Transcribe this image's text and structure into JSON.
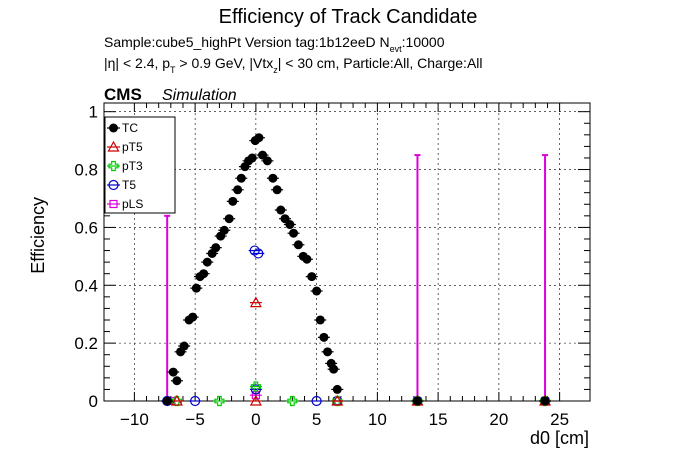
{
  "chart_data": {
    "type": "scatter",
    "title": "Efficiency of Track Candidate",
    "subtitle_line1": "Sample:cube5_highPt   Version tag:1b12eeD  N",
    "subtitle_line1_sub": "evt",
    "subtitle_line1_end": ":10000",
    "subtitle_line2": "|η| < 2.4, p",
    "subtitle_line2_sub1": "T",
    "subtitle_line2_mid": " > 0.9 GeV, |Vtx",
    "subtitle_line2_sub2": "z",
    "subtitle_line2_end": "| < 30 cm, Particle:All, Charge:All",
    "cms_label": "CMS",
    "sim_label": "Simulation",
    "xlabel": "d0 [cm]",
    "ylabel": "Efficiency",
    "xlim": [
      -12.5,
      27.5
    ],
    "ylim": [
      0,
      1.03
    ],
    "x_ticks": [
      -10,
      -5,
      0,
      5,
      10,
      15,
      20,
      25
    ],
    "x_tick_labels": [
      "−10",
      "−5",
      "0",
      "5",
      "10",
      "15",
      "20",
      "25"
    ],
    "y_ticks": [
      0,
      0.2,
      0.4,
      0.6,
      0.8,
      1
    ],
    "y_tick_labels": [
      "0",
      "0.2",
      "0.4",
      "0.6",
      "0.8",
      "1"
    ],
    "grid": true,
    "legend_position": "top-left",
    "series": [
      {
        "name": "TC",
        "color": "#000000",
        "marker": "filled-circle",
        "points": [
          [
            -7.3,
            0.0
          ],
          [
            -6.8,
            0.1
          ],
          [
            -6.5,
            0.07
          ],
          [
            -6.2,
            0.17
          ],
          [
            -5.9,
            0.19
          ],
          [
            -5.5,
            0.28
          ],
          [
            -5.2,
            0.29
          ],
          [
            -4.9,
            0.39
          ],
          [
            -4.6,
            0.43
          ],
          [
            -4.3,
            0.44
          ],
          [
            -4.0,
            0.48
          ],
          [
            -3.6,
            0.51
          ],
          [
            -3.3,
            0.53
          ],
          [
            -2.9,
            0.57
          ],
          [
            -2.6,
            0.59
          ],
          [
            -2.2,
            0.63
          ],
          [
            -1.9,
            0.69
          ],
          [
            -1.5,
            0.73
          ],
          [
            -1.2,
            0.77
          ],
          [
            -0.9,
            0.81
          ],
          [
            -0.6,
            0.83
          ],
          [
            -0.3,
            0.84
          ],
          [
            -0.05,
            0.9
          ],
          [
            0.25,
            0.91
          ],
          [
            0.55,
            0.85
          ],
          [
            0.95,
            0.83
          ],
          [
            1.4,
            0.77
          ],
          [
            1.75,
            0.73
          ],
          [
            2.05,
            0.66
          ],
          [
            2.4,
            0.63
          ],
          [
            2.8,
            0.61
          ],
          [
            3.1,
            0.58
          ],
          [
            3.5,
            0.54
          ],
          [
            3.9,
            0.5
          ],
          [
            4.2,
            0.49
          ],
          [
            4.6,
            0.43
          ],
          [
            5.0,
            0.38
          ],
          [
            5.3,
            0.28
          ],
          [
            5.6,
            0.22
          ],
          [
            5.9,
            0.17
          ],
          [
            6.2,
            0.13
          ],
          [
            6.4,
            0.11
          ],
          [
            6.7,
            0.04
          ],
          [
            13.3,
            0.0
          ],
          [
            23.8,
            0.0
          ]
        ]
      },
      {
        "name": "pT5",
        "color": "#cc0000",
        "marker": "open-triangle",
        "points": [
          [
            0.0,
            0.34
          ],
          [
            0.0,
            0.0
          ],
          [
            -6.5,
            0.0
          ],
          [
            6.7,
            0.0
          ],
          [
            13.3,
            0.0
          ],
          [
            23.8,
            0.0
          ]
        ]
      },
      {
        "name": "pT3",
        "color": "#00cc00",
        "marker": "open-cross",
        "points": [
          [
            0.0,
            0.05
          ],
          [
            -6.5,
            0.0
          ],
          [
            -3.0,
            0.0
          ],
          [
            3.0,
            0.0
          ],
          [
            6.7,
            0.0
          ],
          [
            13.3,
            0.0
          ],
          [
            23.8,
            0.0
          ]
        ]
      },
      {
        "name": "T5",
        "color": "#0000cc",
        "marker": "open-circle",
        "points": [
          [
            -0.1,
            0.52
          ],
          [
            0.2,
            0.51
          ],
          [
            0.0,
            0.04
          ],
          [
            -7.3,
            0.0
          ],
          [
            -5.0,
            0.0
          ],
          [
            5.0,
            0.0
          ],
          [
            6.7,
            0.0
          ],
          [
            13.3,
            0.0
          ],
          [
            23.8,
            0.0
          ]
        ]
      },
      {
        "name": "pLS",
        "color": "#dd00dd",
        "marker": "open-square",
        "points": [
          [
            -7.0,
            0.0
          ],
          [
            0.0,
            0.02
          ],
          [
            6.7,
            0.0
          ],
          [
            13.3,
            0.0
          ],
          [
            23.8,
            0.0
          ]
        ],
        "errors": [
          {
            "x": -7.3,
            "low": 0.0,
            "high": 0.64
          },
          {
            "x": 13.3,
            "low": 0.0,
            "high": 0.85
          },
          {
            "x": 23.8,
            "low": 0.0,
            "high": 0.85
          }
        ]
      }
    ]
  }
}
